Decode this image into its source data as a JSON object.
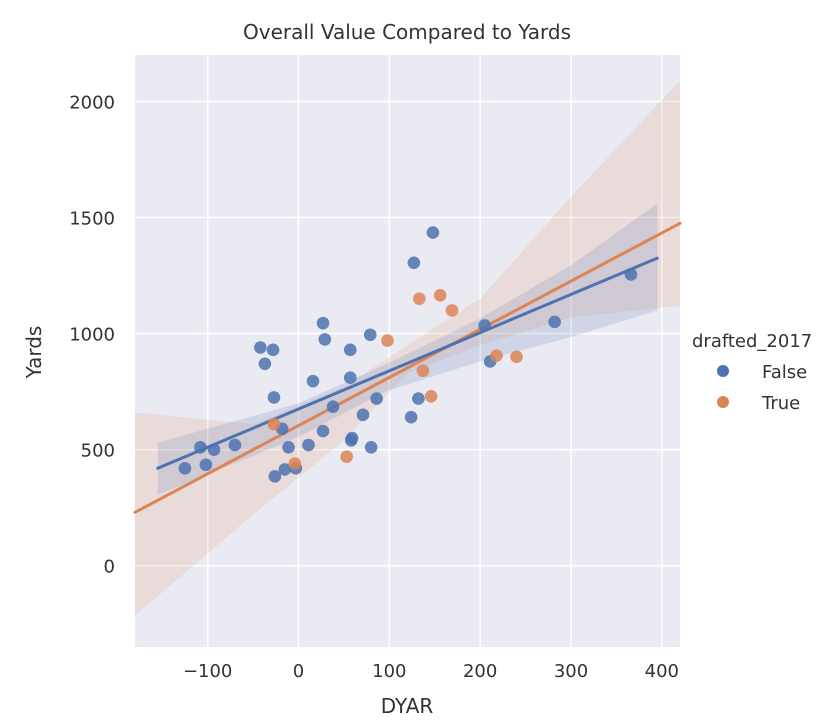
{
  "chart_data": {
    "type": "scatter",
    "title": "Overall Value Compared to Yards",
    "xlabel": "DYAR",
    "ylabel": "Yards",
    "xlim": [
      -180,
      420
    ],
    "ylim": [
      -350,
      2200
    ],
    "xticks": [
      -100,
      0,
      100,
      200,
      300,
      400
    ],
    "xtick_labels": [
      "−100",
      "0",
      "100",
      "200",
      "300",
      "400"
    ],
    "yticks": [
      0,
      500,
      1000,
      1500,
      2000
    ],
    "ytick_labels": [
      "0",
      "500",
      "1000",
      "1500",
      "2000"
    ],
    "grid": true,
    "background": "#eaeaf2",
    "legend": {
      "title": "drafted_2017",
      "placement": "right",
      "entries": [
        "False",
        "True"
      ]
    },
    "series": [
      {
        "name": "False",
        "color": "#4c72b0",
        "points": [
          [
            -125,
            420
          ],
          [
            -108,
            510
          ],
          [
            -102,
            435
          ],
          [
            -93,
            500
          ],
          [
            -70,
            520
          ],
          [
            -42,
            940
          ],
          [
            -37,
            870
          ],
          [
            -28,
            930
          ],
          [
            -27,
            725
          ],
          [
            -26,
            385
          ],
          [
            -18,
            590
          ],
          [
            -15,
            415
          ],
          [
            -11,
            510
          ],
          [
            -3,
            420
          ],
          [
            11,
            520
          ],
          [
            16,
            795
          ],
          [
            27,
            1045
          ],
          [
            27,
            580
          ],
          [
            29,
            975
          ],
          [
            38,
            685
          ],
          [
            57,
            930
          ],
          [
            57,
            810
          ],
          [
            58,
            540
          ],
          [
            59,
            550
          ],
          [
            71,
            650
          ],
          [
            79,
            995
          ],
          [
            80,
            510
          ],
          [
            86,
            720
          ],
          [
            124,
            640
          ],
          [
            127,
            1305
          ],
          [
            132,
            720
          ],
          [
            148,
            1435
          ],
          [
            205,
            1035
          ],
          [
            211,
            880
          ],
          [
            282,
            1050
          ],
          [
            366,
            1255
          ]
        ],
        "fit": {
          "x": [
            -155,
            395
          ],
          "y": [
            420,
            1325
          ]
        },
        "ci_band": [
          [
            -155,
            530,
            305
          ],
          [
            0,
            700,
            555
          ],
          [
            95,
            865,
            750
          ],
          [
            200,
            1065,
            880
          ],
          [
            300,
            1295,
            985
          ],
          [
            395,
            1560,
            1100
          ]
        ]
      },
      {
        "name": "True",
        "color": "#dd8452",
        "points": [
          [
            -27,
            610
          ],
          [
            -4,
            440
          ],
          [
            53,
            470
          ],
          [
            98,
            970
          ],
          [
            133,
            1150
          ],
          [
            137,
            840
          ],
          [
            146,
            730
          ],
          [
            156,
            1165
          ],
          [
            169,
            1100
          ],
          [
            218,
            905
          ],
          [
            240,
            900
          ]
        ],
        "fit": {
          "x": [
            -180,
            420
          ],
          "y": [
            230,
            1475
          ]
        },
        "ci_band": [
          [
            -180,
            660,
            -215
          ],
          [
            -50,
            610,
            220
          ],
          [
            50,
            770,
            540
          ],
          [
            120,
            950,
            830
          ],
          [
            200,
            1150,
            950
          ],
          [
            300,
            1590,
            1070
          ],
          [
            420,
            2090,
            1120
          ]
        ]
      }
    ]
  }
}
